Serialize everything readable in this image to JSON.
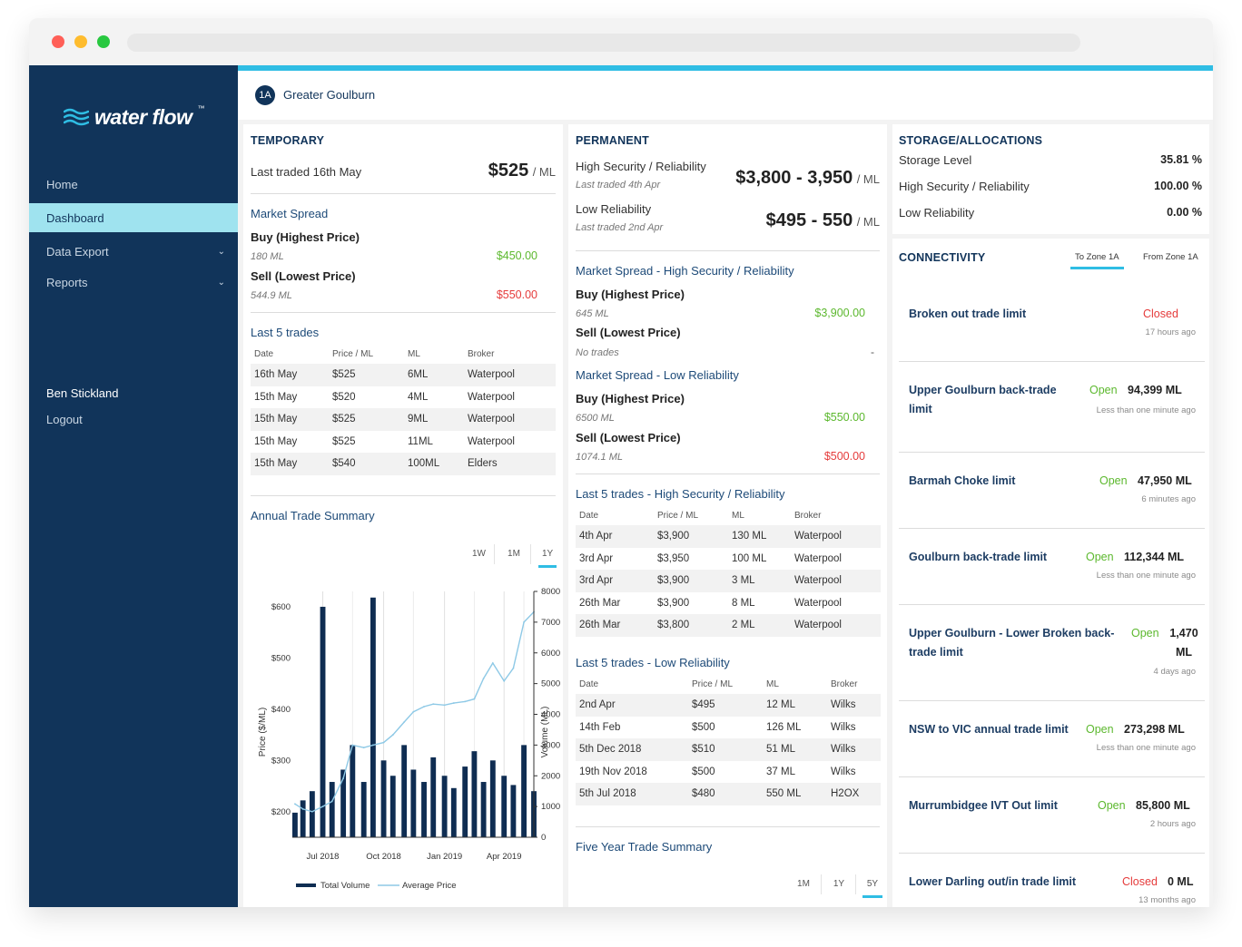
{
  "app": {
    "logo_text": "water flow",
    "logo_tm": "™"
  },
  "sidebar": {
    "items": [
      {
        "label": "Home"
      },
      {
        "label": "Dashboard"
      },
      {
        "label": "Data Export"
      },
      {
        "label": "Reports"
      }
    ],
    "user_name": "Ben Stickland",
    "logout_label": "Logout"
  },
  "header": {
    "zone_badge": "1A",
    "zone_name": "Greater Goulburn"
  },
  "temporary": {
    "title": "TEMPORARY",
    "last_traded": "Last traded 16th May",
    "price": "$525",
    "unit": "/ ML",
    "market_spread_title": "Market Spread",
    "buy_label": "Buy (Highest Price)",
    "buy_volume": "180 ML",
    "buy_price": "$450.00",
    "sell_label": "Sell (Lowest Price)",
    "sell_volume": "544.9 ML",
    "sell_price": "$550.00",
    "trades_title": "Last 5 trades",
    "trades_headers": [
      "Date",
      "Price / ML",
      "ML",
      "Broker"
    ],
    "trades": [
      [
        "16th May",
        "$525",
        "6ML",
        "Waterpool"
      ],
      [
        "15th May",
        "$520",
        "4ML",
        "Waterpool"
      ],
      [
        "15th May",
        "$525",
        "9ML",
        "Waterpool"
      ],
      [
        "15th May",
        "$525",
        "11ML",
        "Waterpool"
      ],
      [
        "15th May",
        "$540",
        "100ML",
        "Elders"
      ]
    ],
    "annual_title": "Annual Trade Summary",
    "timeframes": [
      "1W",
      "1M",
      "1Y"
    ],
    "active_timeframe": "1Y"
  },
  "permanent": {
    "title": "PERMANENT",
    "hs_label": "High Security / Reliability",
    "hs_last": "Last traded 4th Apr",
    "hs_price": "$3,800 - 3,950",
    "lr_label": "Low Reliability",
    "lr_last": "Last traded 2nd Apr",
    "lr_price": "$495 - 550",
    "unit": "/ ML",
    "spread_hs_title": "Market Spread - High Security / Reliability",
    "hs_buy_label": "Buy (Highest Price)",
    "hs_buy_volume": "645 ML",
    "hs_buy_price": "$3,900.00",
    "hs_sell_label": "Sell (Lowest Price)",
    "hs_sell_volume": "No trades",
    "hs_sell_price": "-",
    "spread_lr_title": "Market Spread - Low Reliability",
    "lr_buy_label": "Buy (Highest Price)",
    "lr_buy_volume": "6500 ML",
    "lr_buy_price": "$550.00",
    "lr_sell_label": "Sell (Lowest Price)",
    "lr_sell_volume": "1074.1 ML",
    "lr_sell_price": "$500.00",
    "hs_trades_title": "Last 5 trades - High Security / Reliability",
    "trades_headers": [
      "Date",
      "Price / ML",
      "ML",
      "Broker"
    ],
    "hs_trades": [
      [
        "4th Apr",
        "$3,900",
        "130 ML",
        "Waterpool"
      ],
      [
        "3rd Apr",
        "$3,950",
        "100 ML",
        "Waterpool"
      ],
      [
        "3rd Apr",
        "$3,900",
        "3 ML",
        "Waterpool"
      ],
      [
        "26th Mar",
        "$3,900",
        "8 ML",
        "Waterpool"
      ],
      [
        "26th Mar",
        "$3,800",
        "2 ML",
        "Waterpool"
      ]
    ],
    "lr_trades_title": "Last 5 trades - Low Reliability",
    "lr_trades": [
      [
        "2nd Apr",
        "$495",
        "12 ML",
        "Wilks"
      ],
      [
        "14th Feb",
        "$500",
        "126 ML",
        "Wilks"
      ],
      [
        "5th Dec 2018",
        "$510",
        "51 ML",
        "Wilks"
      ],
      [
        "19th Nov 2018",
        "$500",
        "37 ML",
        "Wilks"
      ],
      [
        "5th Jul 2018",
        "$480",
        "550 ML",
        "H2OX"
      ]
    ],
    "five_year_title": "Five Year Trade Summary",
    "timeframes": [
      "1M",
      "1Y",
      "5Y"
    ],
    "active_timeframe": "5Y"
  },
  "storage": {
    "title": "STORAGE/ALLOCATIONS",
    "rows": [
      {
        "label": "Storage Level",
        "value": "35.81 %"
      },
      {
        "label": "High Security / Reliability",
        "value": "100.00 %"
      },
      {
        "label": "Low Reliability",
        "value": "0.00 %"
      }
    ]
  },
  "connectivity": {
    "title": "CONNECTIVITY",
    "tabs": [
      "To Zone 1A",
      "From Zone 1A"
    ],
    "active_tab": "To Zone 1A",
    "items": [
      {
        "name": "Broken out trade limit",
        "status": "Closed",
        "value": "",
        "time": "17 hours ago"
      },
      {
        "name": "Upper Goulburn back-trade limit",
        "status": "Open",
        "value": "94,399 ML",
        "time": "Less than one minute ago"
      },
      {
        "name": "Barmah Choke limit",
        "status": "Open",
        "value": "47,950 ML",
        "time": "6 minutes ago"
      },
      {
        "name": "Goulburn back-trade limit",
        "status": "Open",
        "value": "112,344 ML",
        "time": "Less than one minute ago"
      },
      {
        "name": "Upper Goulburn - Lower Broken back-trade limit",
        "status": "Open",
        "value": "1,470 ML",
        "time": "4 days ago"
      },
      {
        "name": "NSW to VIC annual trade limit",
        "status": "Open",
        "value": "273,298 ML",
        "time": "Less than one minute ago"
      },
      {
        "name": "Murrumbidgee IVT Out limit",
        "status": "Open",
        "value": "85,800 ML",
        "time": "2 hours ago"
      },
      {
        "name": "Lower Darling out/in trade limit",
        "status": "Closed",
        "value": "0 ML",
        "time": "13 months ago"
      }
    ]
  },
  "colors": {
    "navy": "#11345a",
    "accent": "#2fbde4",
    "active_nav": "#9fe3ef",
    "positive": "#5cb82e",
    "negative": "#e53b3b"
  },
  "chart_data": {
    "type": "bar",
    "xlabel": "",
    "ylabel": "Price ($/ML)",
    "y2label": "Volume (ML)",
    "ylim": [
      150,
      630
    ],
    "y2lim": [
      0,
      8000
    ],
    "y_ticks": [
      "$200",
      "$300",
      "$400",
      "$500",
      "$600"
    ],
    "y2_ticks": [
      "0",
      "1000",
      "2000",
      "3000",
      "4000",
      "5000",
      "6000",
      "7000",
      "8000"
    ],
    "x_ticks": [
      "Jul 2018",
      "Oct 2018",
      "Jan 2019",
      "Apr 2019"
    ],
    "x_range": [
      "2018-05-16",
      "2019-05-16"
    ],
    "grid": "vertical",
    "legend": "bottom",
    "legend_entries": [
      "Total Volume",
      "Average Price"
    ],
    "series": [
      {
        "name": "Average Price",
        "type": "line",
        "x": [
          "2018-05-20",
          "2018-06-01",
          "2018-06-15",
          "2018-07-01",
          "2018-07-15",
          "2018-08-01",
          "2018-08-15",
          "2018-09-01",
          "2018-09-15",
          "2018-10-01",
          "2018-10-15",
          "2018-11-01",
          "2018-11-15",
          "2018-12-01",
          "2018-12-15",
          "2019-01-01",
          "2019-01-15",
          "2019-02-01",
          "2019-02-15",
          "2019-03-01",
          "2019-03-15",
          "2019-04-01",
          "2019-04-15",
          "2019-05-01",
          "2019-05-16"
        ],
        "values": [
          215,
          205,
          200,
          210,
          220,
          265,
          330,
          325,
          330,
          335,
          350,
          375,
          395,
          405,
          410,
          408,
          412,
          415,
          420,
          460,
          490,
          455,
          480,
          570,
          590
        ]
      },
      {
        "name": "Total Volume",
        "type": "bar",
        "x": [
          "2018-05-20",
          "2018-06-01",
          "2018-06-15",
          "2018-07-01",
          "2018-07-15",
          "2018-08-01",
          "2018-08-15",
          "2018-09-01",
          "2018-09-15",
          "2018-10-01",
          "2018-10-15",
          "2018-11-01",
          "2018-11-15",
          "2018-12-01",
          "2018-12-15",
          "2019-01-01",
          "2019-01-15",
          "2019-02-01",
          "2019-02-15",
          "2019-03-01",
          "2019-03-15",
          "2019-04-01",
          "2019-04-15",
          "2019-05-01",
          "2019-05-16"
        ],
        "values": [
          800,
          1200,
          1500,
          7500,
          1800,
          2200,
          3000,
          1800,
          7800,
          2500,
          2000,
          3000,
          2200,
          1800,
          2600,
          2000,
          1600,
          2300,
          2800,
          1800,
          2500,
          2000,
          1700,
          3000,
          1500
        ]
      }
    ]
  }
}
